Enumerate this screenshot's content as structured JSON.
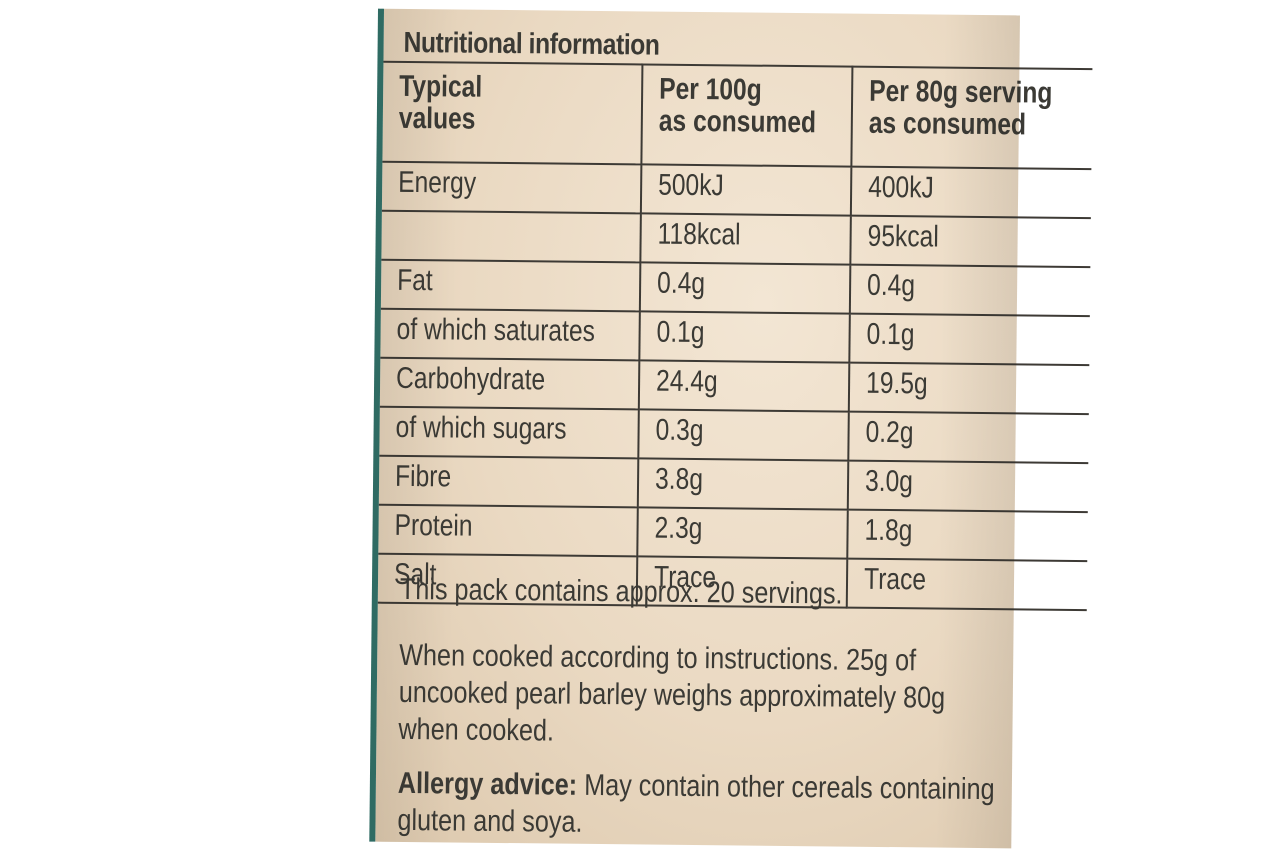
{
  "title": "Nutritional information",
  "table": {
    "headers": [
      [
        "Typical",
        "values"
      ],
      [
        "Per 100g",
        "as consumed"
      ],
      [
        "Per 80g serving",
        "as consumed"
      ]
    ],
    "rows": [
      [
        "Energy",
        "500kJ",
        "400kJ"
      ],
      [
        "",
        "118kcal",
        "95kcal"
      ],
      [
        "Fat",
        "0.4g",
        "0.4g"
      ],
      [
        "of which saturates",
        "0.1g",
        "0.1g"
      ],
      [
        "Carbohydrate",
        "24.4g",
        "19.5g"
      ],
      [
        "of which sugars",
        "0.3g",
        "0.2g"
      ],
      [
        "Fibre",
        "3.8g",
        "3.0g"
      ],
      [
        "Protein",
        "2.3g",
        "1.8g"
      ],
      [
        "Salt",
        "Trace",
        "Trace"
      ]
    ]
  },
  "notes": {
    "servings": "This pack contains approx. 20 servings.",
    "cooked_lines": [
      "When cooked according to instructions. 25g of",
      "uncooked pearl barley weighs approximately 80g",
      "when cooked."
    ],
    "allergy_label": "Allergy advice:",
    "allergy_lines": [
      " May contain other cereals containing",
      "gluten and soya."
    ]
  }
}
